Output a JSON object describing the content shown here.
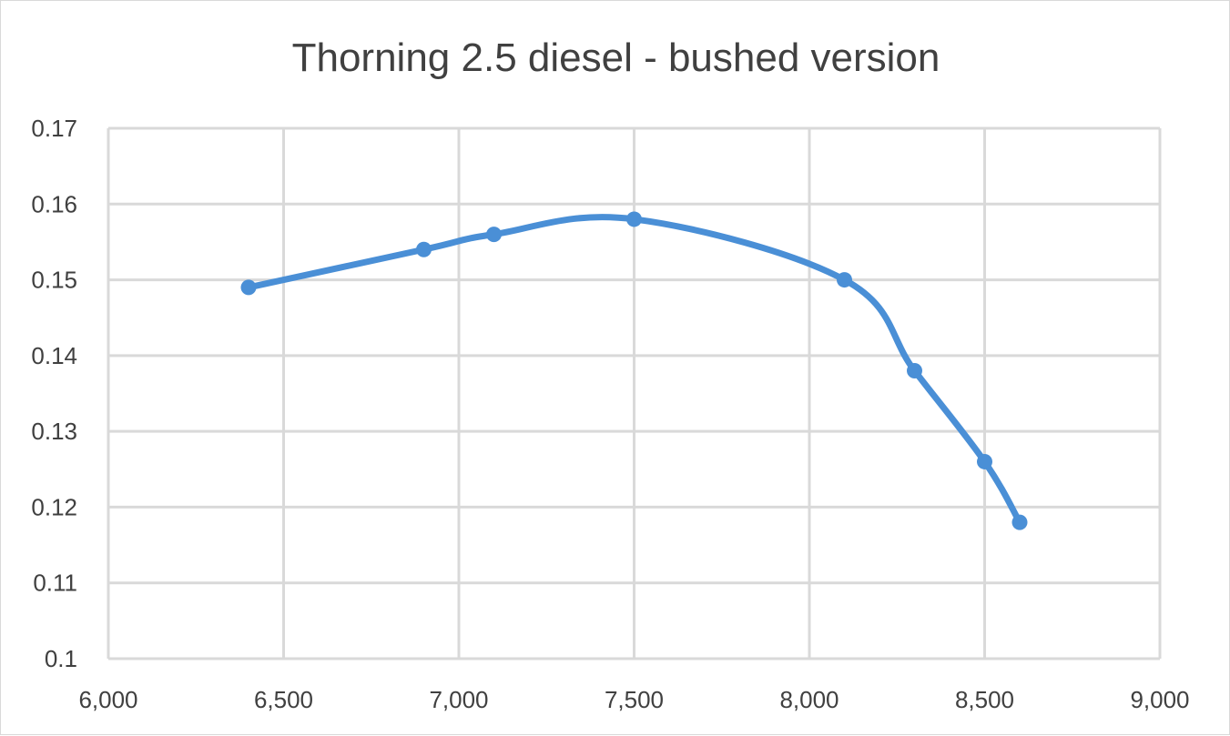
{
  "chart_data": {
    "type": "line",
    "title": "Thorning 2.5 diesel - bushed version",
    "xlabel": "",
    "ylabel": "",
    "xlim": [
      6000,
      9000
    ],
    "ylim": [
      0.1,
      0.17
    ],
    "grid": true,
    "smooth": true,
    "x_ticks": [
      6000,
      6500,
      7000,
      7500,
      8000,
      8500,
      9000
    ],
    "x_tick_labels": [
      "6,000",
      "6,500",
      "7,000",
      "7,500",
      "8,000",
      "8,500",
      "9,000"
    ],
    "y_ticks": [
      0.1,
      0.11,
      0.12,
      0.13,
      0.14,
      0.15,
      0.16,
      0.17
    ],
    "y_tick_labels": [
      "0.1",
      "0.11",
      "0.12",
      "0.13",
      "0.14",
      "0.15",
      "0.16",
      "0.17"
    ],
    "series": [
      {
        "color": "#4a8fd6",
        "x": [
          6400,
          6900,
          7100,
          7500,
          8100,
          8300,
          8500,
          8600
        ],
        "y": [
          0.149,
          0.154,
          0.156,
          0.158,
          0.15,
          0.138,
          0.126,
          0.118
        ]
      }
    ]
  }
}
